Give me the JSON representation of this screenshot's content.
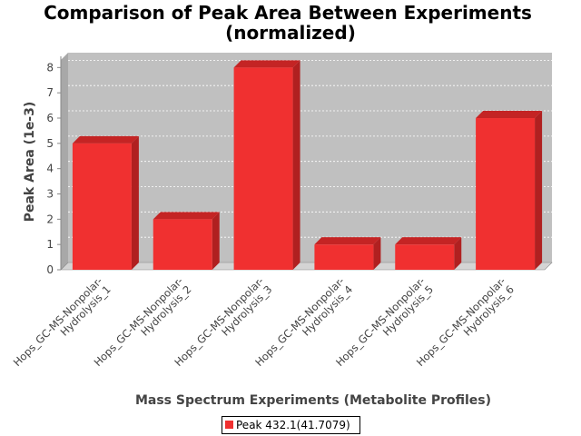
{
  "chart_data": {
    "type": "bar",
    "title_line1": "Comparison of Peak Area Between Experiments",
    "title_line2": "(normalized)",
    "xlabel": "Mass Spectrum Experiments (Metabolite Profiles)",
    "ylabel": "Peak Area (1e-3)",
    "ylim": [
      0,
      8.3
    ],
    "yticks": [
      "0",
      "1",
      "2",
      "3",
      "4",
      "5",
      "6",
      "7",
      "8"
    ],
    "grid": true,
    "legend_position": "bottom",
    "categories": [
      {
        "line1": "Hops_GC-MS-Nonpolar-",
        "line2": "Hydrolysis_1"
      },
      {
        "line1": "Hops_GC-MS-Nonpolar-",
        "line2": "Hydrolysis_2"
      },
      {
        "line1": "Hops_GC-MS-Nonpolar-",
        "line2": "Hydrolysis_3"
      },
      {
        "line1": "Hops_GC-MS-Nonpolar-",
        "line2": "Hydrolysis_4"
      },
      {
        "line1": "Hops_GC-MS-Nonpolar-",
        "line2": "Hydrolysis_5"
      },
      {
        "line1": "Hops_GC-MS-Nonpolar-",
        "line2": "Hydrolysis_6"
      }
    ],
    "series": [
      {
        "name": "Peak 432.1(41.7079)",
        "color": "#f03030",
        "values": [
          5,
          2,
          8,
          1,
          1,
          6
        ]
      }
    ]
  },
  "colors": {
    "plot_background": "#c0c0c0",
    "plot_side": "#a8a8a8",
    "plot_floor": "#d4d4d4",
    "bar_front": "#f03030",
    "bar_top": "#c42424",
    "bar_side": "#b02020"
  }
}
